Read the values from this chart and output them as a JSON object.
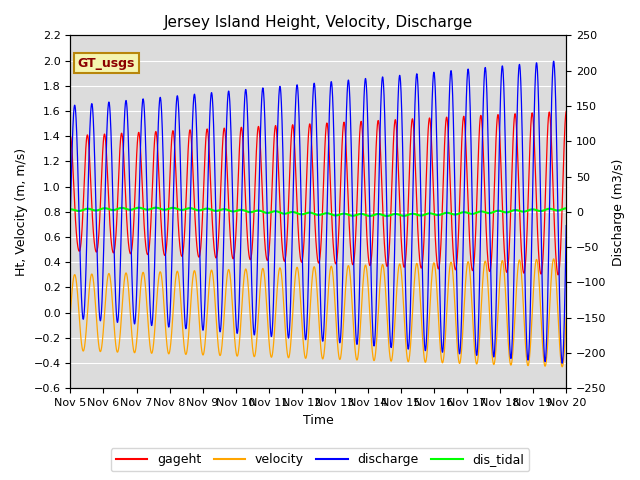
{
  "title": "Jersey Island Height, Velocity, Discharge",
  "xlabel": "Time",
  "ylabel_left": "Ht, Velocity (m, m/s)",
  "ylabel_right": "Discharge (m3/s)",
  "ylim_left": [
    -0.6,
    2.2
  ],
  "ylim_right": [
    -250,
    250
  ],
  "xlim": [
    0,
    15
  ],
  "xtick_labels": [
    "Nov 5",
    "Nov 6",
    "Nov 7",
    "Nov 8",
    "Nov 9",
    "Nov 10",
    "Nov 11",
    "Nov 12",
    "Nov 13",
    "Nov 14",
    "Nov 15",
    "Nov 16",
    "Nov 17",
    "Nov 18",
    "Nov 19",
    "Nov 20"
  ],
  "legend_labels": [
    "gageht",
    "velocity",
    "discharge",
    "dis_tidal"
  ],
  "gt_label": "GT_usgs",
  "background_color": "#dcdcdc",
  "figure_color": "#ffffff",
  "tidal_period_hours": 12.42,
  "n_days": 15,
  "title_fontsize": 11,
  "axis_fontsize": 9,
  "tick_fontsize": 8,
  "legend_fontsize": 9
}
